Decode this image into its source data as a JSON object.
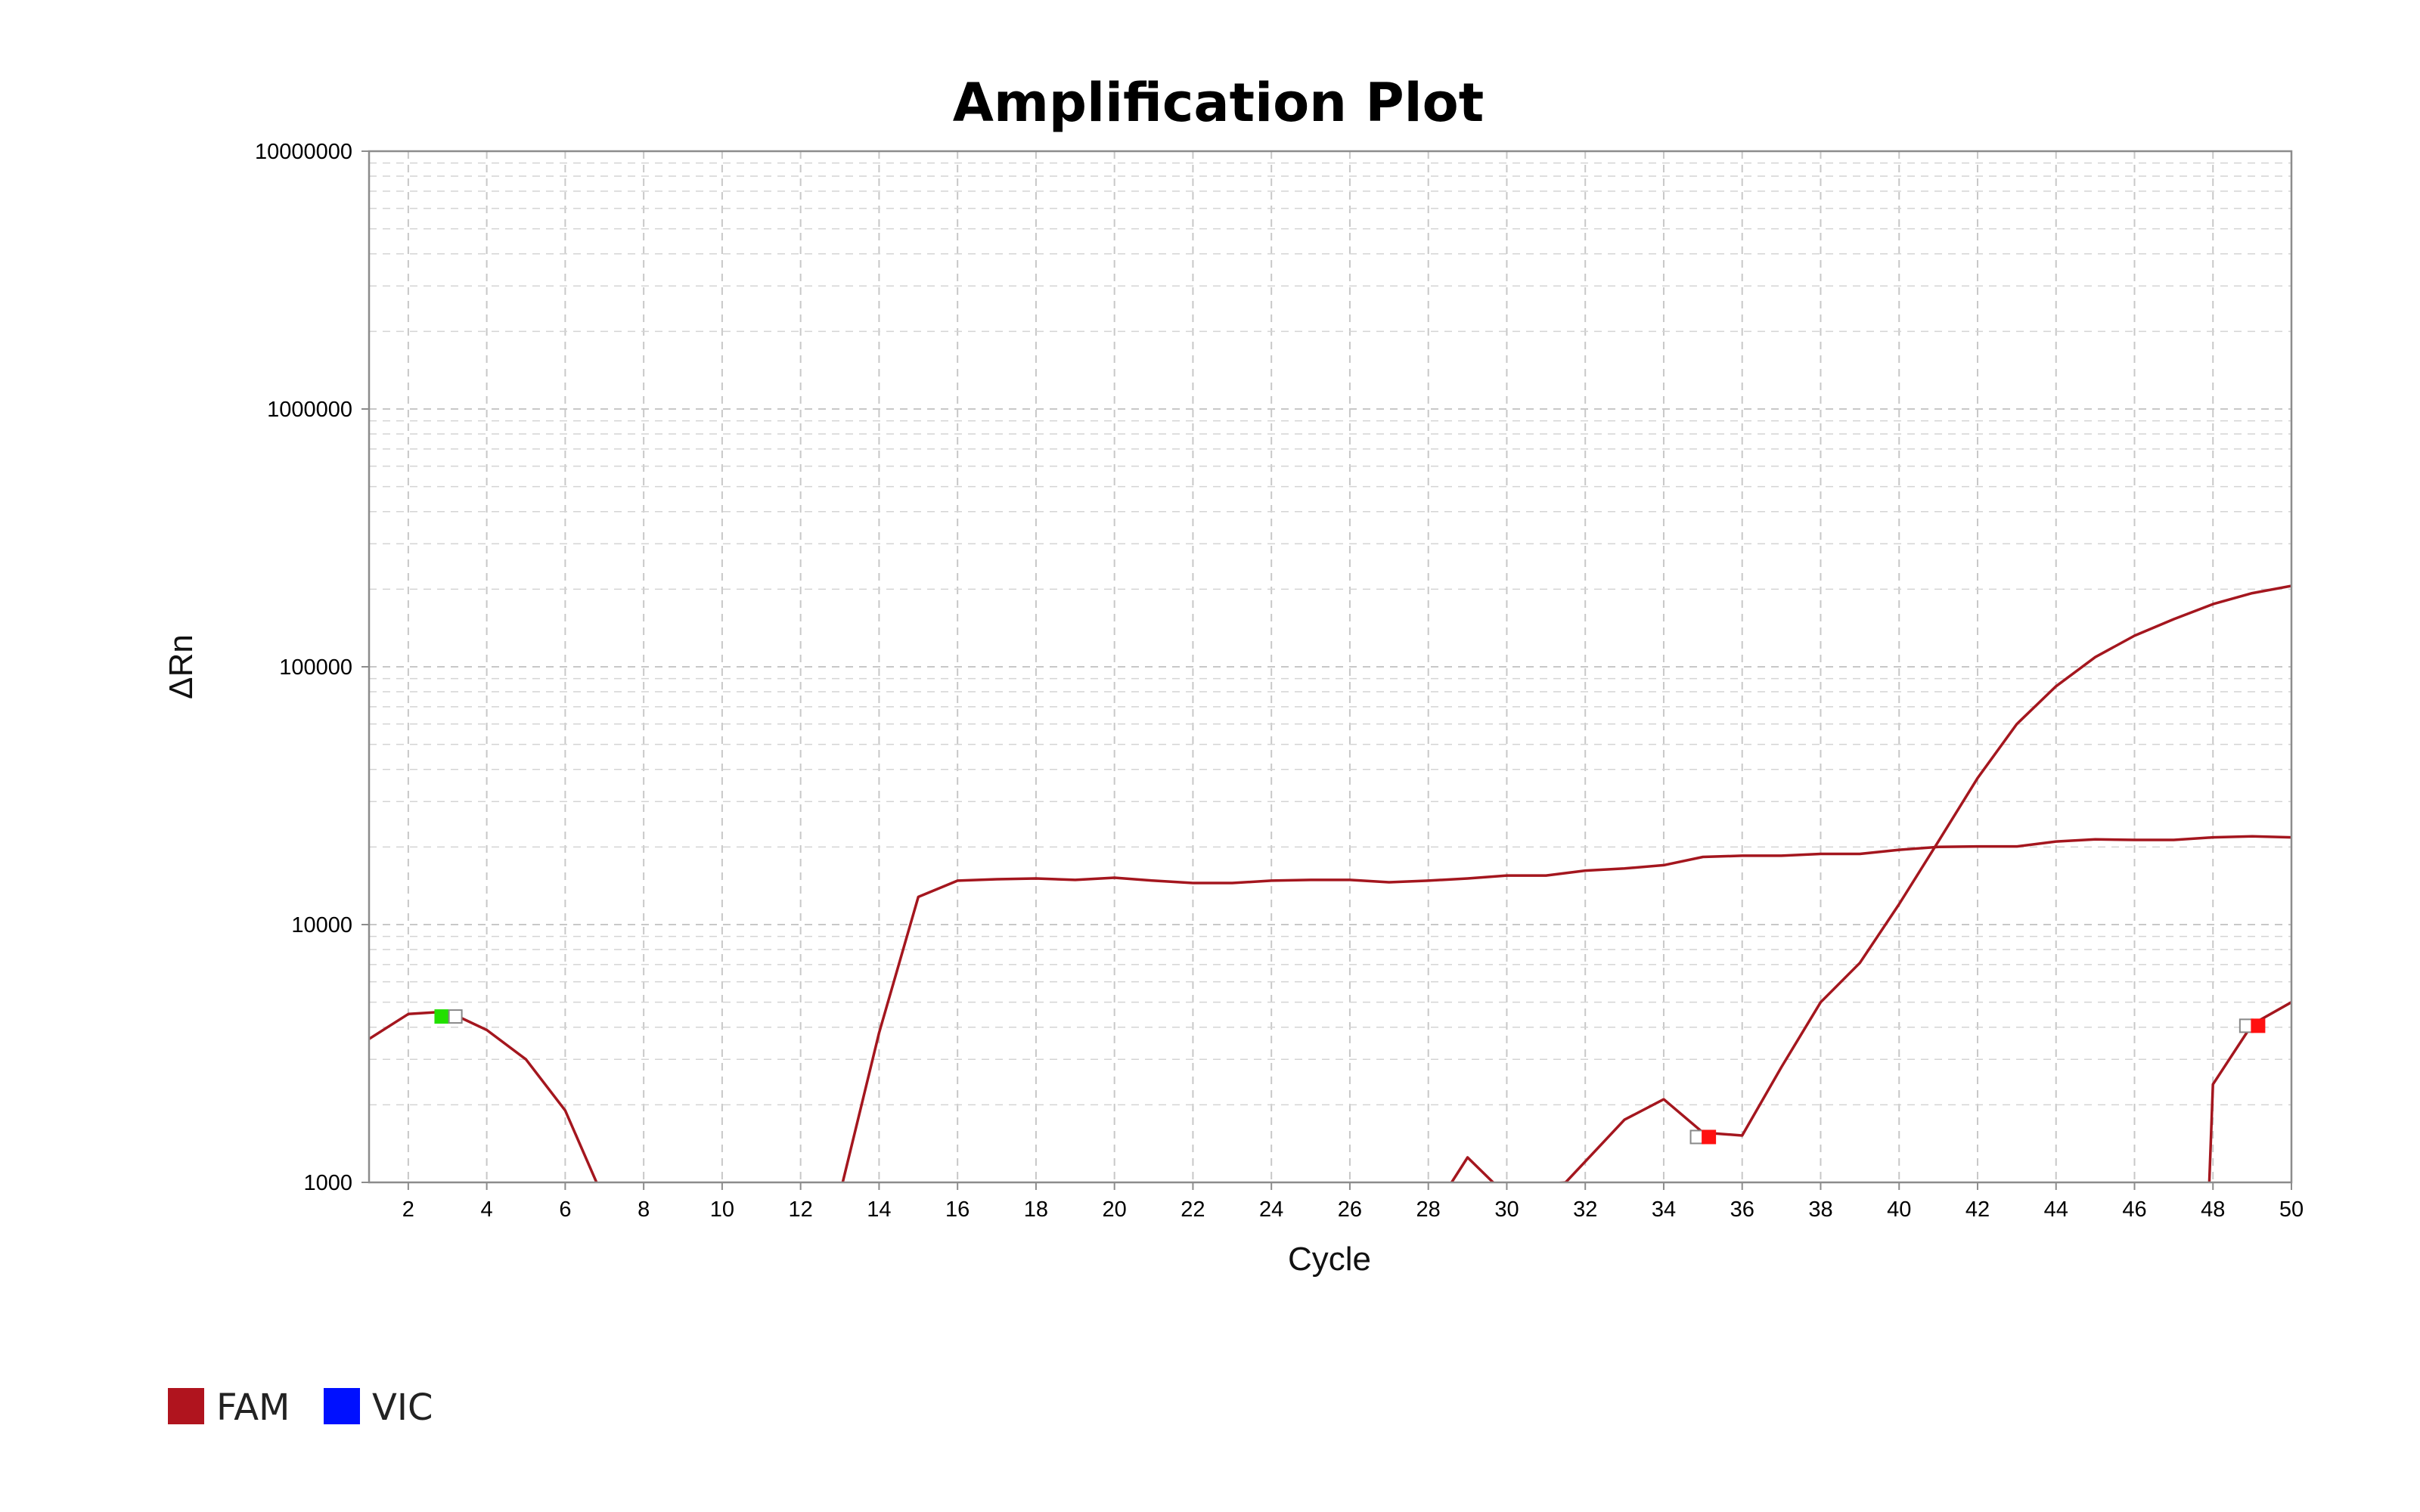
{
  "chart_data": {
    "type": "line",
    "title": "Amplification Plot",
    "xlabel": "Cycle",
    "ylabel": "ΔRn",
    "xlim": [
      1,
      50
    ],
    "ylim": [
      1000,
      10000000
    ],
    "y_scale": "log",
    "grid": true,
    "x_ticks": [
      2,
      4,
      6,
      8,
      10,
      12,
      14,
      16,
      18,
      20,
      22,
      24,
      26,
      28,
      30,
      32,
      34,
      36,
      38,
      40,
      42,
      44,
      46,
      48,
      50
    ],
    "y_ticks": [
      1000,
      10000,
      100000,
      1000000,
      10000000
    ],
    "y_tick_labels": [
      "1000",
      "10000",
      "100000",
      "1000000",
      "10000000"
    ],
    "legend": {
      "placement": "bottom-left",
      "entries": [
        {
          "name": "FAM",
          "color": "#b0141e"
        },
        {
          "name": "VIC",
          "color": "#0010ff"
        }
      ]
    },
    "series": [
      {
        "color": "#a4161e",
        "x": [
          1,
          2,
          3,
          4,
          5,
          6,
          7,
          13,
          14,
          15,
          16,
          17,
          18,
          19,
          20,
          21,
          22,
          23,
          24,
          25,
          26,
          27,
          28,
          29,
          30,
          31,
          32,
          33,
          34,
          35,
          36,
          37,
          38,
          39,
          40,
          41,
          42,
          43,
          44,
          45,
          46,
          47,
          48,
          49,
          50
        ],
        "y": [
          3600,
          4500,
          4600,
          3900,
          3000,
          1900,
          850,
          900,
          3800,
          12800,
          14800,
          15000,
          15100,
          14900,
          15200,
          14800,
          14500,
          14500,
          14800,
          14900,
          14900,
          14600,
          14800,
          15100,
          15500,
          15500,
          16200,
          16500,
          17000,
          18300,
          18500,
          18500,
          18800,
          18800,
          19500,
          20000,
          20100,
          20100,
          21000,
          21400,
          21300,
          21300,
          21800,
          22000,
          21800
        ]
      },
      {
        "color": "#a4161e",
        "x": [
          28.5,
          29,
          29.8,
          31.5,
          33,
          34,
          35,
          36,
          37,
          38,
          39,
          40,
          41,
          42,
          43,
          44,
          45,
          46,
          47,
          48,
          49,
          50
        ],
        "y": [
          950,
          1250,
          950,
          1000,
          1750,
          2100,
          1560,
          1520,
          2800,
          5000,
          7100,
          12000,
          21000,
          37000,
          60000,
          84000,
          109000,
          132000,
          153000,
          175000,
          193000,
          206000
        ]
      },
      {
        "color": "#a4161e",
        "x": [
          47.9,
          48,
          49,
          50
        ],
        "y": [
          950,
          2400,
          4100,
          5000
        ]
      }
    ],
    "markers": [
      {
        "x": 2.85,
        "y": 4400,
        "color": "#22e000"
      },
      {
        "x": 3.2,
        "y": 4400,
        "color": "#ffffff"
      },
      {
        "x": 34.85,
        "y": 1500,
        "color": "#ffffff"
      },
      {
        "x": 35.15,
        "y": 1500,
        "color": "#ff1010"
      },
      {
        "x": 48.85,
        "y": 4050,
        "color": "#ffffff"
      },
      {
        "x": 49.15,
        "y": 4050,
        "color": "#ff1010"
      }
    ]
  }
}
